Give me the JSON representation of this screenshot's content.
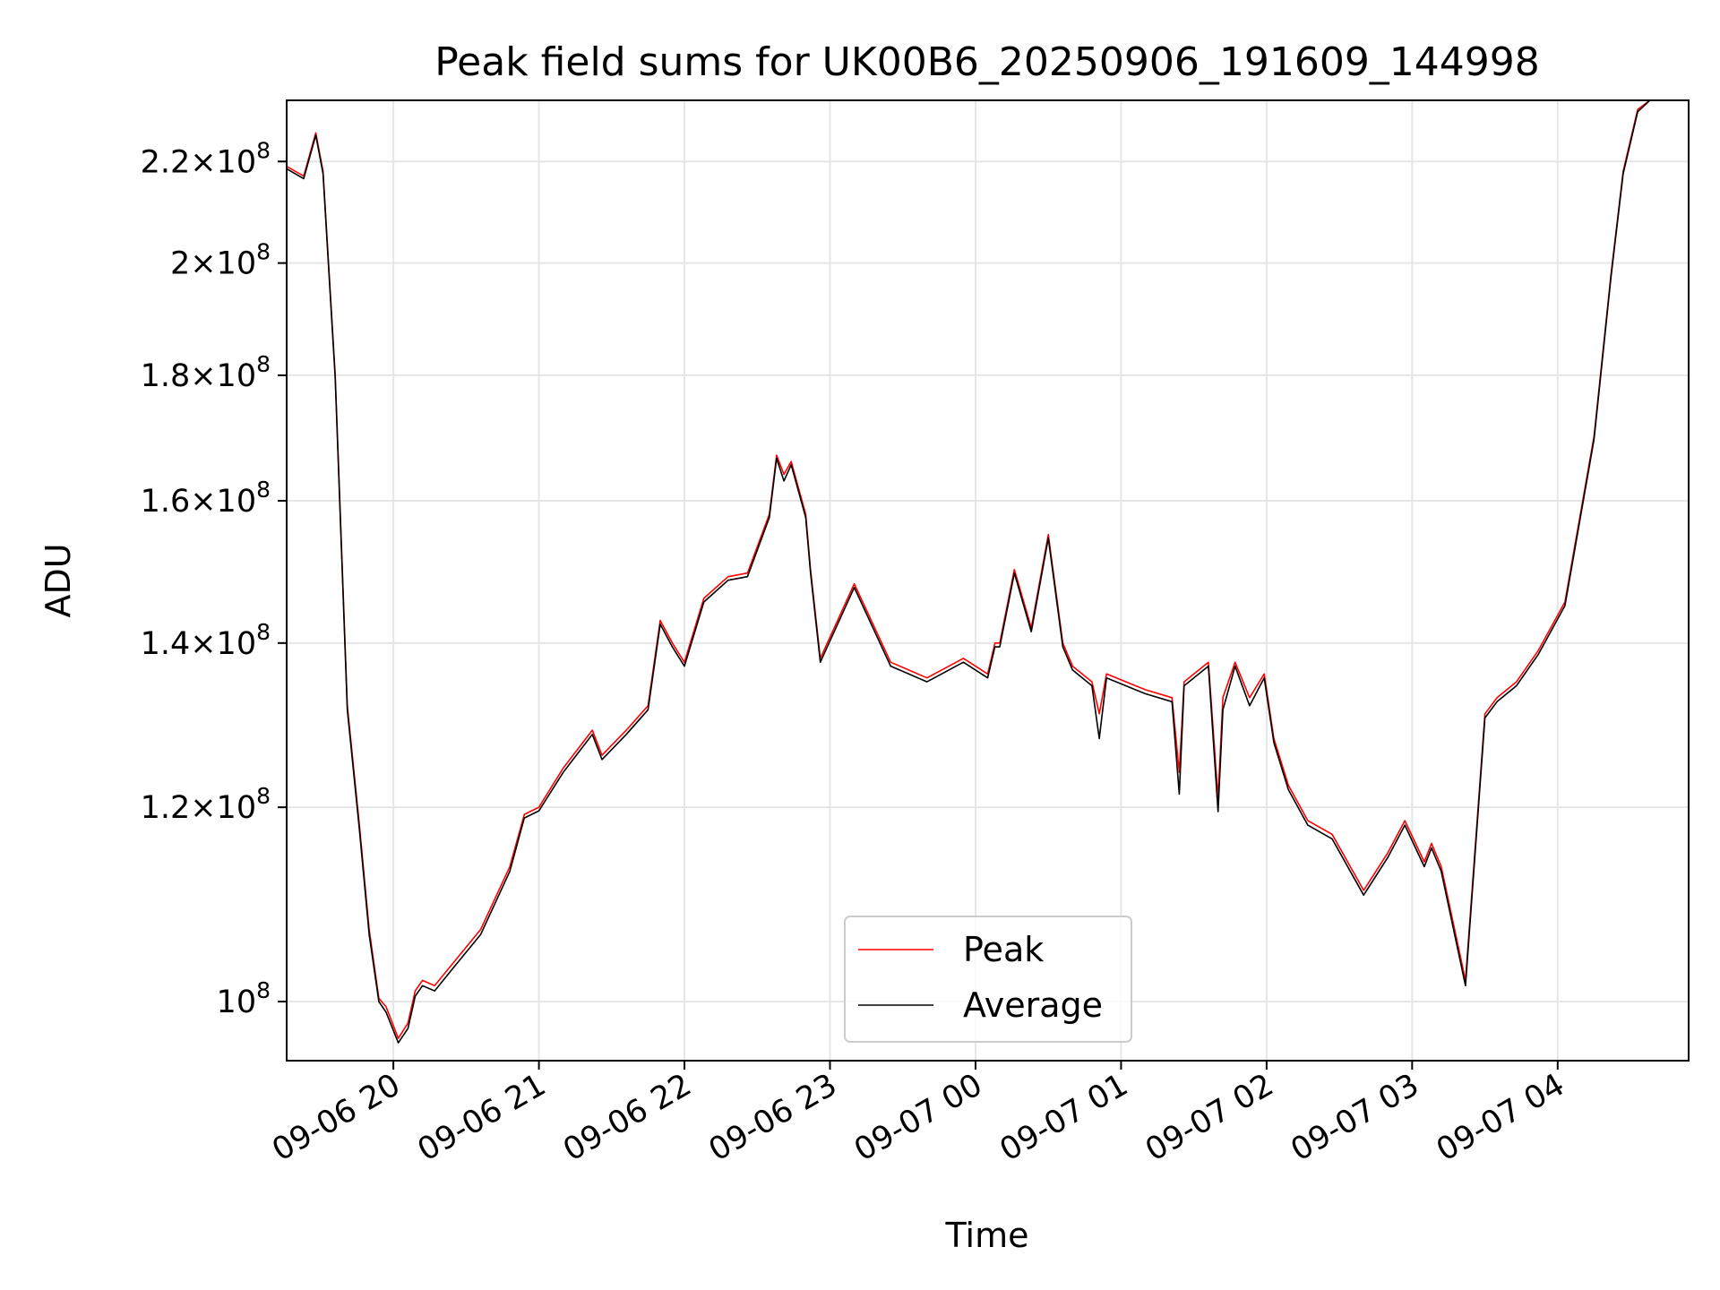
{
  "chart_data": {
    "type": "line",
    "title": "Peak field sums for UK00B6_20250906_191609_144998",
    "xlabel": "Time",
    "ylabel": "ADU",
    "y_scale": "log",
    "grid": true,
    "legend_position": "lower-center",
    "x_range": [
      "2025-09-06 19:16",
      "2025-09-07 04:54"
    ],
    "ylim": [
      94600000,
      233000000
    ],
    "x_ticks": [
      "09-06 20",
      "09-06 21",
      "09-06 22",
      "09-06 23",
      "09-07 00",
      "09-07 01",
      "09-07 02",
      "09-07 03",
      "09-07 04"
    ],
    "y_ticks": [
      {
        "value": 100000000,
        "label": "10^8"
      },
      {
        "value": 120000000,
        "label": "1.2×10^8"
      },
      {
        "value": 140000000,
        "label": "1.4×10^8"
      },
      {
        "value": 160000000,
        "label": "1.6×10^8"
      },
      {
        "value": 180000000,
        "label": "1.8×10^8"
      },
      {
        "value": 200000000,
        "label": "2×10^8"
      },
      {
        "value": 220000000,
        "label": "2.2×10^8"
      }
    ],
    "series": [
      {
        "name": "Peak",
        "color": "#ff0000",
        "x": [
          "2025-09-06 19:16",
          "2025-09-06 19:23",
          "2025-09-06 19:28",
          "2025-09-06 19:31",
          "2025-09-06 19:36",
          "2025-09-06 19:41",
          "2025-09-06 19:46",
          "2025-09-06 19:50",
          "2025-09-06 19:54",
          "2025-09-06 19:57",
          "2025-09-06 20:02",
          "2025-09-06 20:06",
          "2025-09-06 20:09",
          "2025-09-06 20:12",
          "2025-09-06 20:17",
          "2025-09-06 20:24",
          "2025-09-06 20:36",
          "2025-09-06 20:48",
          "2025-09-06 20:54",
          "2025-09-06 21:00",
          "2025-09-06 21:10",
          "2025-09-06 21:22",
          "2025-09-06 21:26",
          "2025-09-06 21:36",
          "2025-09-06 21:45",
          "2025-09-06 21:50",
          "2025-09-06 21:55",
          "2025-09-06 22:00",
          "2025-09-06 22:08",
          "2025-09-06 22:18",
          "2025-09-06 22:26",
          "2025-09-06 22:35",
          "2025-09-06 22:38",
          "2025-09-06 22:41",
          "2025-09-06 22:44",
          "2025-09-06 22:50",
          "2025-09-06 22:52",
          "2025-09-06 22:56",
          "2025-09-06 23:10",
          "2025-09-06 23:25",
          "2025-09-06 23:40",
          "2025-09-06 23:55",
          "2025-09-07 00:05",
          "2025-09-07 00:08",
          "2025-09-07 00:10",
          "2025-09-07 00:16",
          "2025-09-07 00:23",
          "2025-09-07 00:30",
          "2025-09-07 00:36",
          "2025-09-07 00:40",
          "2025-09-07 00:48",
          "2025-09-07 00:51",
          "2025-09-07 00:54",
          "2025-09-07 01:10",
          "2025-09-07 01:21",
          "2025-09-07 01:24",
          "2025-09-07 01:26",
          "2025-09-07 01:36",
          "2025-09-07 01:40",
          "2025-09-07 01:42",
          "2025-09-07 01:47",
          "2025-09-07 01:53",
          "2025-09-07 01:59",
          "2025-09-07 02:03",
          "2025-09-07 02:09",
          "2025-09-07 02:17",
          "2025-09-07 02:27",
          "2025-09-07 02:40",
          "2025-09-07 02:50",
          "2025-09-07 02:57",
          "2025-09-07 03:05",
          "2025-09-07 03:08",
          "2025-09-07 03:12",
          "2025-09-07 03:22",
          "2025-09-07 03:30",
          "2025-09-07 03:35",
          "2025-09-07 03:43",
          "2025-09-07 03:52",
          "2025-09-07 04:03",
          "2025-09-07 04:15",
          "2025-09-07 04:22",
          "2025-09-07 04:27",
          "2025-09-07 04:33",
          "2025-09-07 04:38",
          "2025-09-07 04:43"
        ],
        "values": [
          219000000,
          217000000,
          226000000,
          218000000,
          180000000,
          132000000,
          118000000,
          107000000,
          100300000,
          99500000,
          96600000,
          98000000,
          101000000,
          102000000,
          101500000,
          103500000,
          107000000,
          113500000,
          119200000,
          120000000,
          124500000,
          129000000,
          126000000,
          129000000,
          132000000,
          143000000,
          140000000,
          137500000,
          146000000,
          149000000,
          149500000,
          158000000,
          167000000,
          164000000,
          166000000,
          158000000,
          150000000,
          138000000,
          148000000,
          137500000,
          135500000,
          138000000,
          136000000,
          140000000,
          140000000,
          150000000,
          142000000,
          155000000,
          140000000,
          137000000,
          135000000,
          131000000,
          136000000,
          134000000,
          133000000,
          124000000,
          135000000,
          137500000,
          121000000,
          133000000,
          137500000,
          133000000,
          136000000,
          128000000,
          122500000,
          118500000,
          117000000,
          111000000,
          115000000,
          118500000,
          114000000,
          116000000,
          113500000,
          102000000,
          131000000,
          133000000,
          135000000,
          139000000,
          145500000,
          170000000,
          198000000,
          218000000,
          231000000,
          233000000,
          233000000
        ]
      },
      {
        "name": "Average",
        "color": "#000000",
        "x": [
          "2025-09-06 19:16",
          "2025-09-06 19:23",
          "2025-09-06 19:28",
          "2025-09-06 19:31",
          "2025-09-06 19:36",
          "2025-09-06 19:41",
          "2025-09-06 19:46",
          "2025-09-06 19:50",
          "2025-09-06 19:54",
          "2025-09-06 19:57",
          "2025-09-06 20:02",
          "2025-09-06 20:06",
          "2025-09-06 20:09",
          "2025-09-06 20:12",
          "2025-09-06 20:17",
          "2025-09-06 20:24",
          "2025-09-06 20:36",
          "2025-09-06 20:48",
          "2025-09-06 20:54",
          "2025-09-06 21:00",
          "2025-09-06 21:10",
          "2025-09-06 21:22",
          "2025-09-06 21:26",
          "2025-09-06 21:36",
          "2025-09-06 21:45",
          "2025-09-06 21:50",
          "2025-09-06 21:55",
          "2025-09-06 22:00",
          "2025-09-06 22:08",
          "2025-09-06 22:18",
          "2025-09-06 22:26",
          "2025-09-06 22:35",
          "2025-09-06 22:38",
          "2025-09-06 22:41",
          "2025-09-06 22:44",
          "2025-09-06 22:50",
          "2025-09-06 22:52",
          "2025-09-06 22:56",
          "2025-09-06 23:10",
          "2025-09-06 23:25",
          "2025-09-06 23:40",
          "2025-09-06 23:55",
          "2025-09-07 00:05",
          "2025-09-07 00:08",
          "2025-09-07 00:10",
          "2025-09-07 00:16",
          "2025-09-07 00:23",
          "2025-09-07 00:30",
          "2025-09-07 00:36",
          "2025-09-07 00:40",
          "2025-09-07 00:48",
          "2025-09-07 00:51",
          "2025-09-07 00:54",
          "2025-09-07 01:10",
          "2025-09-07 01:21",
          "2025-09-07 01:24",
          "2025-09-07 01:26",
          "2025-09-07 01:36",
          "2025-09-07 01:40",
          "2025-09-07 01:42",
          "2025-09-07 01:47",
          "2025-09-07 01:53",
          "2025-09-07 01:59",
          "2025-09-07 02:03",
          "2025-09-07 02:09",
          "2025-09-07 02:17",
          "2025-09-07 02:27",
          "2025-09-07 02:40",
          "2025-09-07 02:50",
          "2025-09-07 02:57",
          "2025-09-07 03:05",
          "2025-09-07 03:08",
          "2025-09-07 03:12",
          "2025-09-07 03:22",
          "2025-09-07 03:30",
          "2025-09-07 03:35",
          "2025-09-07 03:43",
          "2025-09-07 03:52",
          "2025-09-07 04:03",
          "2025-09-07 04:15",
          "2025-09-07 04:22",
          "2025-09-07 04:27",
          "2025-09-07 04:33",
          "2025-09-07 04:38",
          "2025-09-07 04:43"
        ],
        "values": [
          218500000,
          216500000,
          225500000,
          217500000,
          179500000,
          131500000,
          117500000,
          106500000,
          100000000,
          99000000,
          96200000,
          97500000,
          100500000,
          101500000,
          101000000,
          103000000,
          106500000,
          113000000,
          118800000,
          119600000,
          124000000,
          128500000,
          125500000,
          128500000,
          131500000,
          142500000,
          139500000,
          137000000,
          145500000,
          148500000,
          149000000,
          157500000,
          166500000,
          163000000,
          165500000,
          157500000,
          149500000,
          137500000,
          147500000,
          137000000,
          135000000,
          137500000,
          135500000,
          139500000,
          139500000,
          149500000,
          141500000,
          154500000,
          139500000,
          136500000,
          134500000,
          128000000,
          135500000,
          133500000,
          132500000,
          121500000,
          134500000,
          137000000,
          119500000,
          131500000,
          137000000,
          132000000,
          135500000,
          127500000,
          122000000,
          118000000,
          116500000,
          110500000,
          114500000,
          118000000,
          113500000,
          115500000,
          113000000,
          101500000,
          130500000,
          132500000,
          134500000,
          138500000,
          145000000,
          169500000,
          197500000,
          217500000,
          230500000,
          233000000,
          233000000
        ]
      }
    ]
  }
}
